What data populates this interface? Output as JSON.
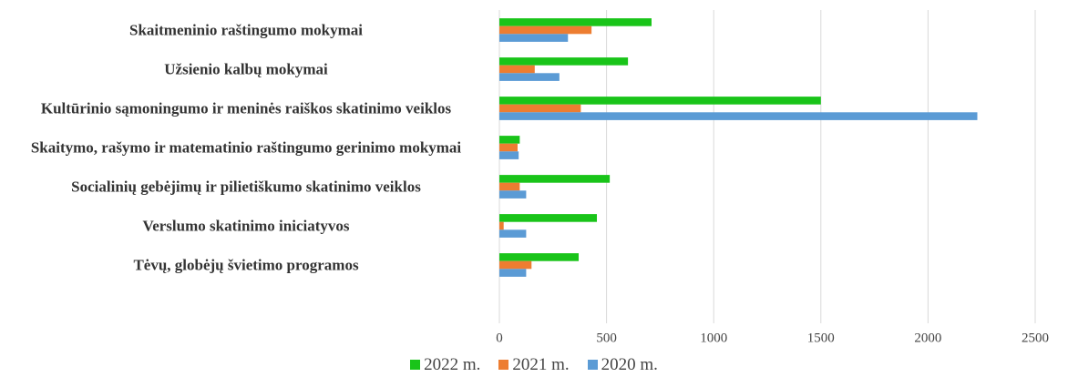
{
  "chart_data": {
    "type": "bar",
    "orientation": "horizontal",
    "categories": [
      "Skaitmeninio raštingumo mokymai",
      "Užsienio kalbų mokymai",
      "Kultūrinio sąmoningumo ir meninės raiškos skatinimo veiklos",
      "Skaitymo, rašymo ir matematinio raštingumo gerinimo mokymai",
      "Socialinių gebėjimų ir pilietiškumo skatinimo veiklos",
      "Verslumo skatinimo iniciatyvos",
      "Tėvų, globėjų švietimo programos"
    ],
    "series": [
      {
        "name": "2022 m.",
        "color": "#19c419",
        "values": [
          710,
          600,
          1500,
          95,
          515,
          455,
          370
        ]
      },
      {
        "name": "2021 m.",
        "color": "#ed7d31",
        "values": [
          430,
          165,
          380,
          85,
          95,
          20,
          150
        ]
      },
      {
        "name": "2020 m.",
        "color": "#5b9bd5",
        "values": [
          320,
          280,
          2230,
          90,
          125,
          125,
          125
        ]
      }
    ],
    "xlim": [
      0,
      2500
    ],
    "xticks": [
      0,
      500,
      1000,
      1500,
      2000,
      2500
    ],
    "grid": true,
    "legend": "bottom"
  }
}
